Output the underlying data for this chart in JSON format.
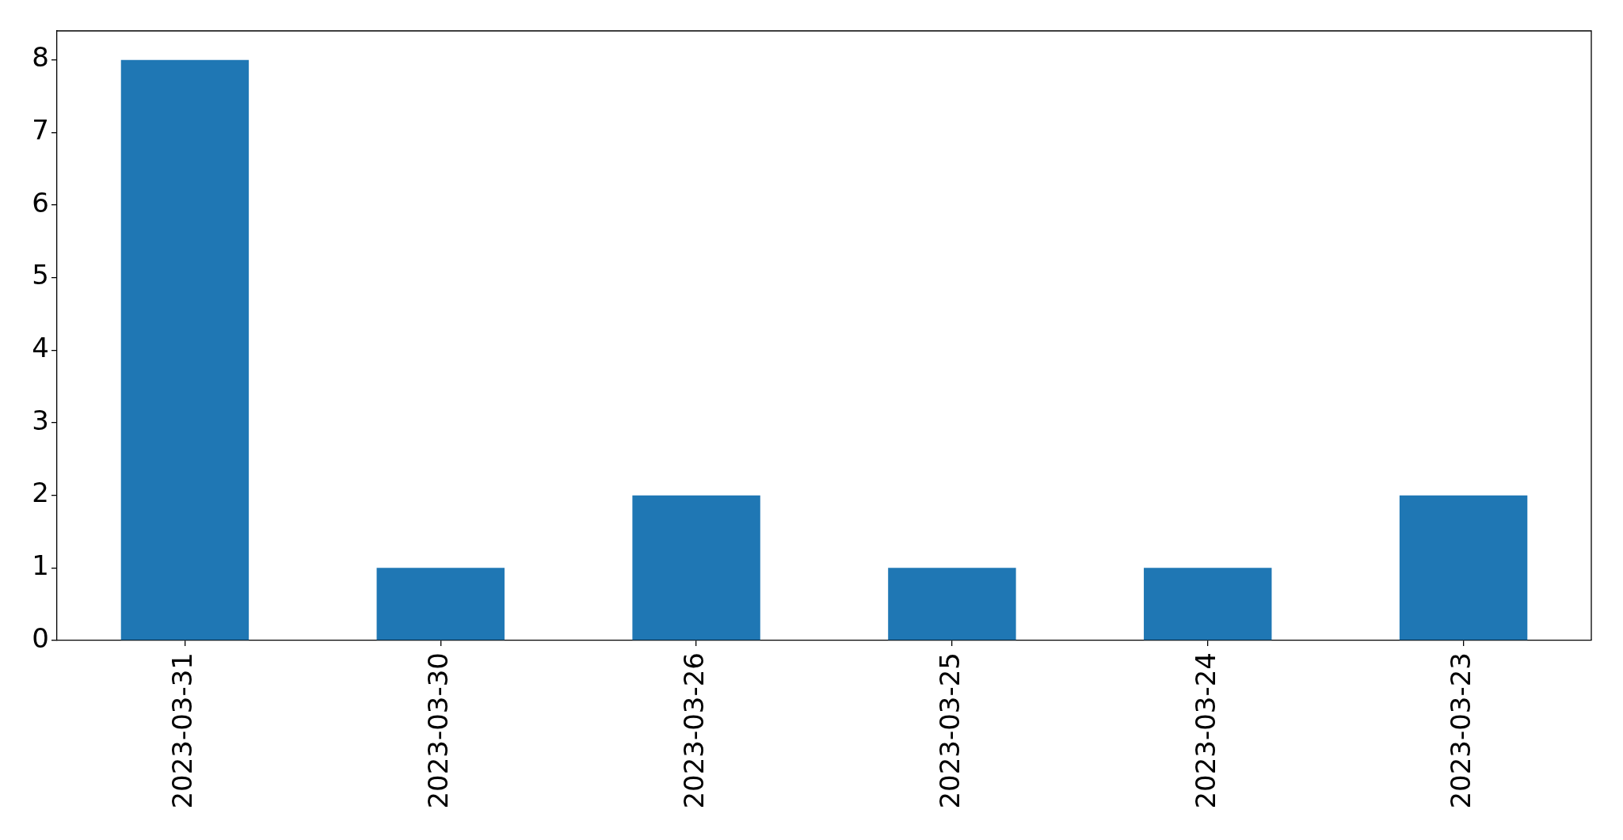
{
  "chart_data": {
    "type": "bar",
    "categories": [
      "2023-03-31",
      "2023-03-30",
      "2023-03-26",
      "2023-03-25",
      "2023-03-24",
      "2023-03-23"
    ],
    "values": [
      8,
      1,
      2,
      1,
      1,
      2
    ],
    "color": "#1f77b4",
    "ylim": [
      0,
      8.4
    ],
    "yticks": [
      0,
      1,
      2,
      3,
      4,
      5,
      6,
      7,
      8
    ],
    "grid": false
  }
}
